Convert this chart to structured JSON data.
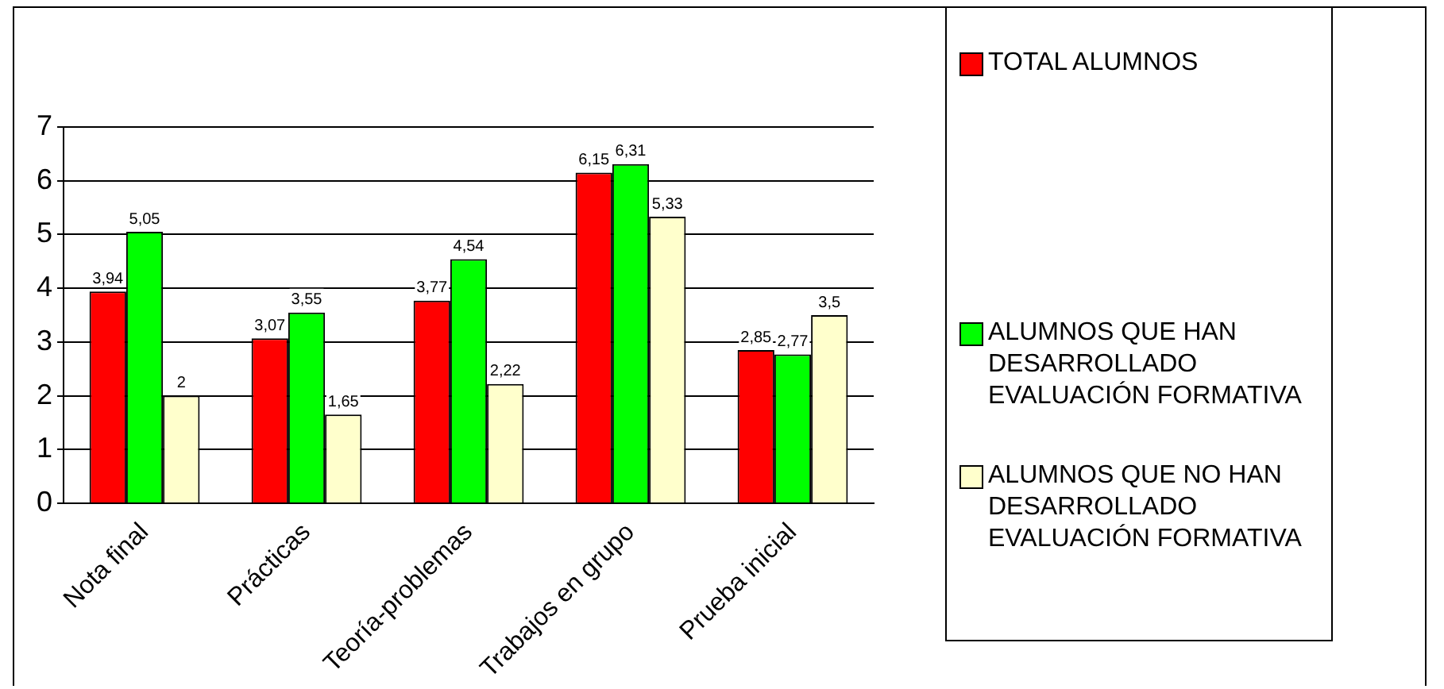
{
  "chart_data": {
    "type": "bar",
    "categories": [
      "Nota final",
      "Prácticas",
      "Teoría-problemas",
      "Trabajos en grupo",
      "Prueba inicial"
    ],
    "series": [
      {
        "name": "TOTAL ALUMNOS",
        "color": "#ff0000",
        "values": [
          3.94,
          3.07,
          3.77,
          6.15,
          2.85
        ],
        "value_labels": [
          "3,94",
          "3,07",
          "3,77",
          "6,15",
          "2,85"
        ]
      },
      {
        "name": "ALUMNOS QUE HAN DESARROLLADO EVALUACIÓN FORMATIVA",
        "color": "#00ff00",
        "values": [
          5.05,
          3.55,
          4.54,
          6.31,
          2.77
        ],
        "value_labels": [
          "5,05",
          "3,55",
          "4,54",
          "6,31",
          "2,77"
        ]
      },
      {
        "name": "ALUMNOS QUE NO HAN DESARROLLADO EVALUACIÓN FORMATIVA",
        "color": "#ffffcc",
        "values": [
          2,
          1.65,
          2.22,
          5.33,
          3.5
        ],
        "value_labels": [
          "2",
          "1,65",
          "2,22",
          "5,33",
          "3,5"
        ]
      }
    ],
    "ylim": [
      0,
      7
    ],
    "yticks": [
      0,
      1,
      2,
      3,
      4,
      5,
      6,
      7
    ],
    "grid": "y",
    "legend": "right"
  }
}
